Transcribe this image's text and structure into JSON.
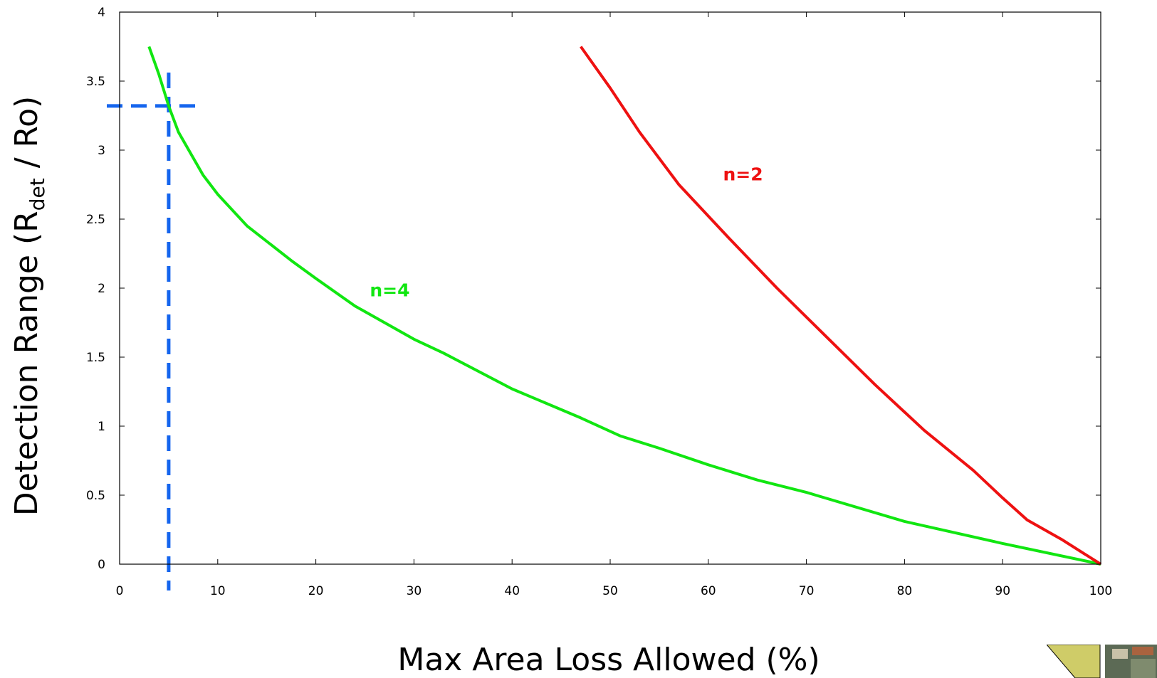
{
  "chart_data": {
    "type": "line",
    "xlabel": "Max Area Loss Allowed (%)",
    "ylabel": {
      "prefix": "Detection Range (R",
      "subscript": "det",
      "suffix": " / Ro)"
    },
    "xlim": [
      0,
      100
    ],
    "ylim": [
      0,
      4
    ],
    "xticks": [
      "0",
      "10",
      "20",
      "30",
      "40",
      "50",
      "60",
      "70",
      "80",
      "90",
      "100"
    ],
    "yticks": [
      "0",
      "0.5",
      "1",
      "1.5",
      "2",
      "2.5",
      "3",
      "3.5",
      "4"
    ],
    "grid": false,
    "series": [
      {
        "name": "n=4",
        "color": "#11e611",
        "x": [
          3,
          4,
          5,
          6,
          8.5,
          10,
          13,
          17.5,
          20,
          24,
          27,
          30,
          33,
          40,
          47,
          51,
          55,
          60,
          65,
          70,
          80,
          90,
          100
        ],
        "y": [
          3.75,
          3.55,
          3.32,
          3.13,
          2.82,
          2.68,
          2.45,
          2.2,
          2.07,
          1.87,
          1.75,
          1.63,
          1.53,
          1.27,
          1.06,
          0.93,
          0.84,
          0.72,
          0.61,
          0.52,
          0.31,
          0.15,
          0
        ]
      },
      {
        "name": "n=2",
        "color": "#ee1111",
        "x": [
          47,
          50,
          53,
          57,
          62,
          67,
          72,
          77,
          82,
          87,
          90,
          92.5,
          96,
          100
        ],
        "y": [
          3.75,
          3.45,
          3.13,
          2.75,
          2.37,
          2.0,
          1.65,
          1.3,
          0.97,
          0.68,
          0.48,
          0.32,
          0.18,
          0
        ]
      }
    ],
    "reference_lines": {
      "color": "#1565ee",
      "x_value": 5,
      "y_value": 3.32
    }
  }
}
